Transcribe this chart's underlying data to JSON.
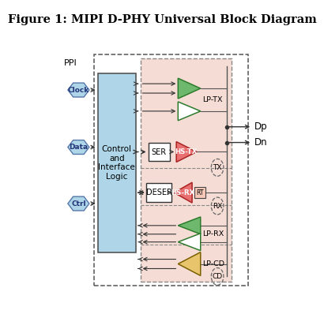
{
  "title": "Figure 1: MIPI D-PHY Universal Block Diagram",
  "title_fontsize": 10.5,
  "fig_bg": "#ffffff",
  "colors": {
    "light_blue_block": "#aed6e8",
    "salmon_bg": "#f5ddd5",
    "green_tri": "#6db86d",
    "pink_tri": "#e87070",
    "yellow_tri": "#e8c46d",
    "white_tri": "#ffffff",
    "ctrl_bg": "#aed6e8",
    "rt_box": "#f5c8b8",
    "arrow": "#333333"
  },
  "ppi_label": "PPI",
  "ppi_labels": [
    "Clock",
    "Data",
    "Ctrl"
  ],
  "right_labels": [
    "Dp",
    "Dn"
  ],
  "block_labels": {
    "ctrl": "Control\nand\nInterface\nLogic",
    "ser": "SER",
    "deser": "DESER",
    "hs_tx": "HS-TX",
    "hs_rx": "HS-RX",
    "rt": "RT",
    "lp_tx": "LP-TX",
    "lp_rx": "LP-RX",
    "lp_cd": "LP-CD",
    "tx": "TX",
    "rx": "RX",
    "cd": "CD"
  }
}
